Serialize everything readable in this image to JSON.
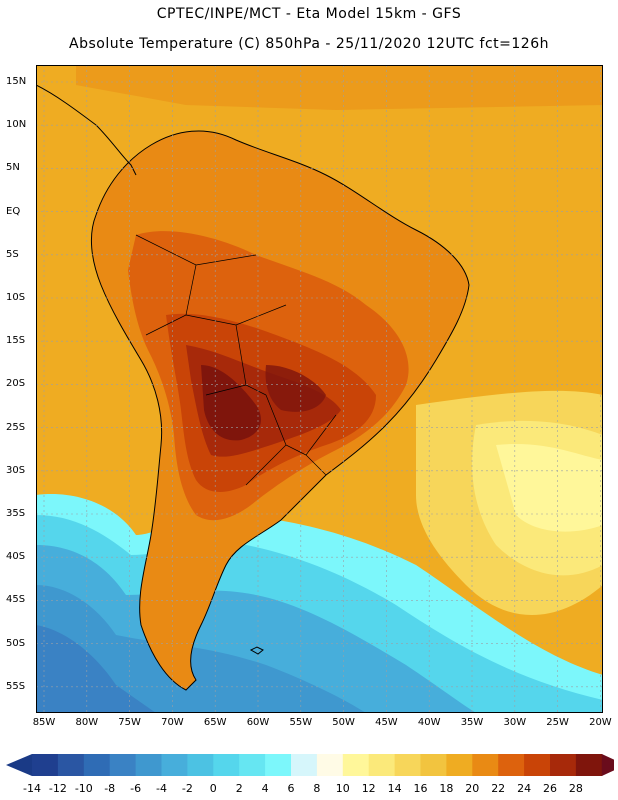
{
  "header": {
    "line1": "CPTEC/INPE/MCT -  Eta Model 15km - GFS",
    "line2": "Absolute Temperature (C) 850hPa - 25/11/2020 12UTC fct=126h"
  },
  "axes": {
    "lat_labels": [
      "15N",
      "10N",
      "5N",
      "EQ",
      "5S",
      "10S",
      "15S",
      "20S",
      "25S",
      "30S",
      "35S",
      "40S",
      "45S",
      "50S",
      "55S"
    ],
    "lon_labels": [
      "85W",
      "80W",
      "75W",
      "70W",
      "65W",
      "60W",
      "55W",
      "50W",
      "45W",
      "40W",
      "35W",
      "30W",
      "25W",
      "20W"
    ]
  },
  "colorbar": {
    "labels": [
      "-14",
      "-12",
      "-10",
      "-8",
      "-6",
      "-4",
      "-2",
      "0",
      "2",
      "4",
      "6",
      "8",
      "10",
      "12",
      "14",
      "16",
      "18",
      "20",
      "22",
      "24",
      "26",
      "28"
    ],
    "colors": [
      "#1f3f8f",
      "#2a56a3",
      "#2f6cb5",
      "#3a82c4",
      "#3f98cf",
      "#47aedb",
      "#4cc2e3",
      "#55d6ec",
      "#66e6f2",
      "#7cf7fb",
      "#d6f6fb",
      "#fffbe6",
      "#fff79a",
      "#fbe97a",
      "#f7d65a",
      "#f2c43f",
      "#efac22",
      "#e98a14",
      "#dd620d",
      "#c94407",
      "#a7290a",
      "#7f150c"
    ],
    "low_cap": "#1a3a86",
    "high_cap": "#6a0c1c"
  },
  "map": {
    "ocean_north": "#efac22",
    "land_hot": "#c94407",
    "land_core": "#7f150c",
    "ocean_south_cold": "#47aedb",
    "coastline": "#000000"
  }
}
